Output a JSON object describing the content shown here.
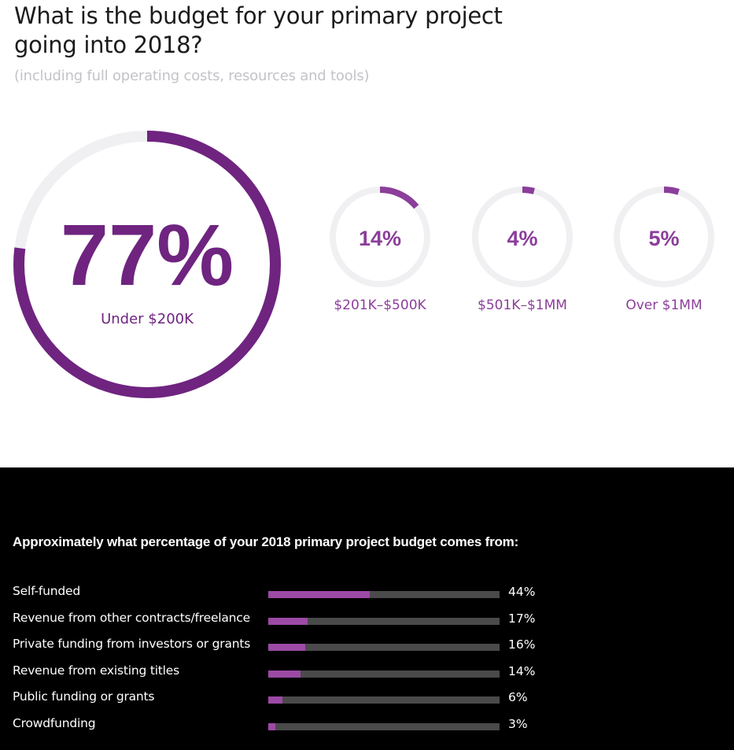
{
  "question_1": {
    "title": "What is the budget for your primary project going into 2018?",
    "subtitle": "(including full operating costs, resources and tools)"
  },
  "question_2": {
    "title": "Approximately what percentage of your 2018 primary project budget comes from:"
  },
  "colors": {
    "primary_purple": "#6f2480",
    "accent_purple": "#8b3e9a",
    "bar_fill": "#9c4aa6",
    "track_light": "#f0f0f3",
    "track_dark": "#4a4a4a"
  },
  "chart_data": [
    {
      "type": "pie",
      "style": "donut",
      "title": "What is the budget for your primary project going into 2018?",
      "slices": [
        {
          "label": "Under $200K",
          "value": 77,
          "display": "77%"
        },
        {
          "label": "$201K–$500K",
          "value": 14,
          "display": "14%"
        },
        {
          "label": "$501K–$1MM",
          "value": 4,
          "display": "4%"
        },
        {
          "label": "Over $1MM",
          "value": 5,
          "display": "5%"
        }
      ]
    },
    {
      "type": "bar",
      "orientation": "horizontal",
      "title": "Approximately what percentage of your 2018 primary project budget comes from:",
      "categories": [
        "Self-funded",
        "Revenue from other contracts/freelance",
        "Private funding from investors or grants",
        "Revenue from existing titles",
        "Public funding or grants",
        "Crowdfunding"
      ],
      "values": [
        44,
        17,
        16,
        14,
        6,
        3
      ],
      "value_labels": [
        "44%",
        "17%",
        "16%",
        "14%",
        "6%",
        "3%"
      ],
      "xlim": [
        0,
        100
      ]
    }
  ]
}
